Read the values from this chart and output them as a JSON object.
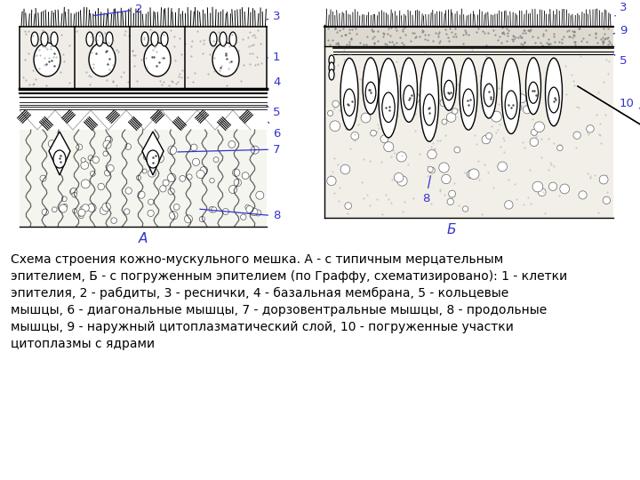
{
  "caption": "Схема строения кожно-мускульного мешка. А - с типичным мерцательным\nэпителием, Б - с погруженным эпителием (по Граффу, схематизировано): 1 - клетки\nэпителия, 2 - рабдиты, 3 - реснички, 4 - базальная мембрана, 5 - кольцевые\nмышцы, 6 - диагональные мышцы, 7 - дорзовентральные мышцы, 8 - продольные\nмышцы, 9 - наружный цитоплазматический слой, 10 - погруженные участки\nцитоплазмы с ядрами",
  "label_A": "А",
  "label_B": "Б",
  "label_color": "#3333cc",
  "bg_color": "#ffffff",
  "caption_fontsize": 10.0,
  "label_fontsize": 11
}
